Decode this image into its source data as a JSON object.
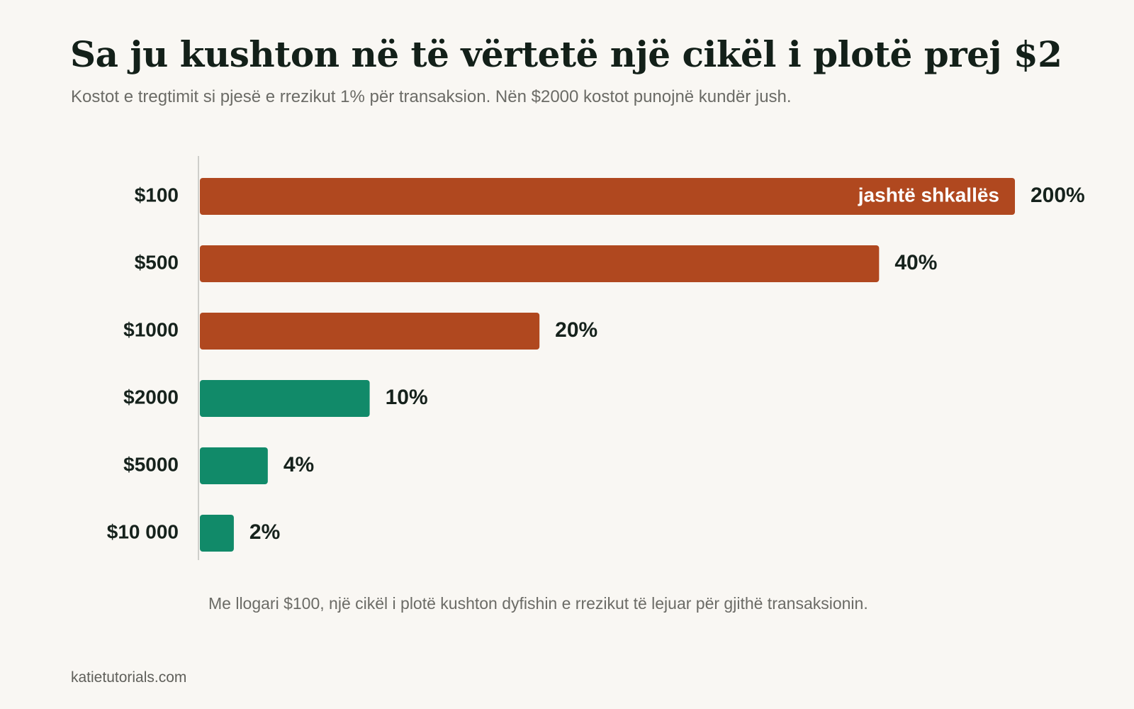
{
  "colors": {
    "background": "#f9f7f3",
    "text": "#16221c",
    "muted_text": "#6b6b66",
    "loss_bar": "#b0481f",
    "ok_bar": "#118a69",
    "axis_line": "#cfcfcb"
  },
  "header": {
    "title": "Sa ju kushton në të vërtetë një cikël i plotë prej $2",
    "subtitle": "Kostot e tregtimit si pjesë e rrezikut 1% për transaksion. Nën $2000 kostot punojnë kundër jush."
  },
  "chart_data": {
    "type": "bar",
    "orientation": "horizontal",
    "categories": [
      "$100",
      "$500",
      "$1000",
      "$2000",
      "$5000",
      "$10 000"
    ],
    "values": [
      200,
      40,
      20,
      10,
      4,
      2
    ],
    "value_labels": [
      "200%",
      "40%",
      "20%",
      "10%",
      "4%",
      "2%"
    ],
    "bar_colors": [
      "#b0481f",
      "#b0481f",
      "#b0481f",
      "#118a69",
      "#118a69",
      "#118a69"
    ],
    "xlim": [
      0,
      48
    ],
    "clipped_bar_label": "jashtë shkallës",
    "grid": false,
    "legend": false
  },
  "note": "Me llogari $100, një cikël i plotë kushton dyfishin e rrezikut të lejuar për gjithë transaksionin.",
  "source": "katietutorials.com"
}
